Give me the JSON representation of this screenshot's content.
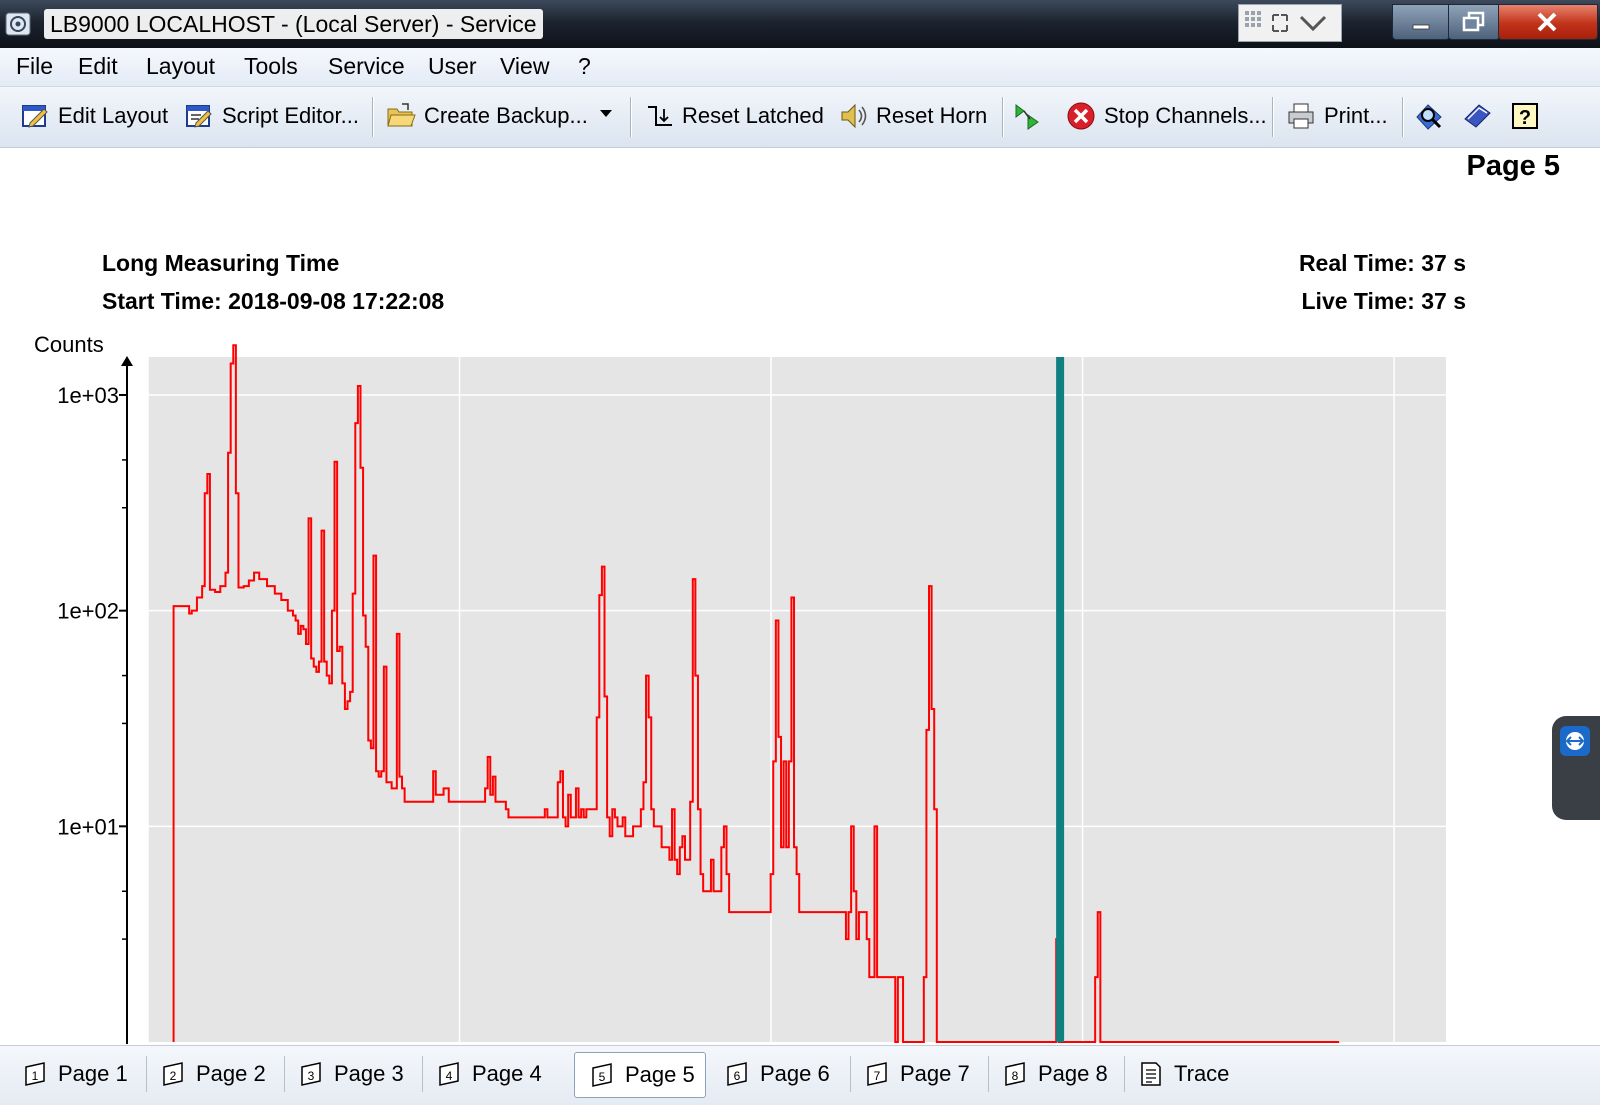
{
  "window": {
    "title": "LB9000 LOCALHOST - (Local Server) - Service"
  },
  "menu": [
    "File",
    "Edit",
    "Layout",
    "Tools",
    "Service",
    "User",
    "View",
    "?"
  ],
  "toolbar": {
    "edit_layout": "Edit Layout",
    "script_editor": "Script Editor...",
    "create_backup": "Create Backup...",
    "reset_latched": "Reset Latched",
    "reset_horn": "Reset Horn",
    "stop_channels": "Stop Channels...",
    "print": "Print..."
  },
  "page_label": "Page 5",
  "measurement": {
    "title": "Long Measuring Time",
    "start_time": "Start Time: 2018-09-08 17:22:08",
    "real_time": "Real Time: 37 s",
    "live_time": "Live Time: 37 s"
  },
  "chart_data": {
    "type": "line",
    "ylabel": "Counts",
    "y_scale": "log",
    "ylim": [
      1,
      1500
    ],
    "xlim": [
      0,
      1000
    ],
    "yticks": [
      "1e+01",
      "1e+02",
      "1e+03"
    ],
    "ytick_values": [
      10,
      100,
      1000
    ],
    "grid": true,
    "x_gridlines": [
      0,
      240,
      480,
      720,
      960
    ],
    "marker_x": 695,
    "series": [
      {
        "points": [
          [
            12,
            1
          ],
          [
            12,
            105
          ],
          [
            22,
            105
          ],
          [
            24,
            97
          ],
          [
            26,
            100
          ],
          [
            30,
            115
          ],
          [
            34,
            130
          ],
          [
            36,
            350
          ],
          [
            38,
            430
          ],
          [
            40,
            125
          ],
          [
            44,
            122
          ],
          [
            48,
            130
          ],
          [
            52,
            150
          ],
          [
            54,
            540
          ],
          [
            56,
            1400
          ],
          [
            58,
            1700
          ],
          [
            60,
            350
          ],
          [
            62,
            128
          ],
          [
            66,
            130
          ],
          [
            70,
            138
          ],
          [
            74,
            150
          ],
          [
            78,
            140
          ],
          [
            84,
            130
          ],
          [
            90,
            120
          ],
          [
            95,
            112
          ],
          [
            100,
            100
          ],
          [
            104,
            95
          ],
          [
            106,
            90
          ],
          [
            108,
            78
          ],
          [
            110,
            85
          ],
          [
            112,
            82
          ],
          [
            114,
            70
          ],
          [
            116,
            268
          ],
          [
            118,
            60
          ],
          [
            120,
            55
          ],
          [
            122,
            52
          ],
          [
            124,
            58
          ],
          [
            126,
            235
          ],
          [
            128,
            58
          ],
          [
            130,
            50
          ],
          [
            132,
            46
          ],
          [
            134,
            100
          ],
          [
            136,
            490
          ],
          [
            138,
            65
          ],
          [
            140,
            68
          ],
          [
            142,
            46
          ],
          [
            144,
            35
          ],
          [
            146,
            38
          ],
          [
            148,
            42
          ],
          [
            150,
            120
          ],
          [
            152,
            740
          ],
          [
            154,
            1100
          ],
          [
            156,
            460
          ],
          [
            158,
            95
          ],
          [
            160,
            68
          ],
          [
            162,
            25
          ],
          [
            164,
            23
          ],
          [
            166,
            180
          ],
          [
            168,
            18
          ],
          [
            170,
            17
          ],
          [
            172,
            18
          ],
          [
            174,
            55
          ],
          [
            176,
            16
          ],
          [
            178,
            16
          ],
          [
            180,
            15
          ],
          [
            182,
            15
          ],
          [
            184,
            78
          ],
          [
            186,
            17
          ],
          [
            188,
            15
          ],
          [
            190,
            13
          ],
          [
            210,
            13
          ],
          [
            212,
            18
          ],
          [
            214,
            14
          ],
          [
            218,
            14
          ],
          [
            220,
            15
          ],
          [
            224,
            13
          ],
          [
            250,
            13
          ],
          [
            252,
            15
          ],
          [
            254,
            21
          ],
          [
            256,
            14
          ],
          [
            258,
            17
          ],
          [
            260,
            13
          ],
          [
            266,
            13
          ],
          [
            268,
            12
          ],
          [
            270,
            11
          ],
          [
            296,
            11
          ],
          [
            298,
            12
          ],
          [
            300,
            11
          ],
          [
            306,
            11
          ],
          [
            308,
            16
          ],
          [
            310,
            18
          ],
          [
            312,
            11
          ],
          [
            314,
            10
          ],
          [
            316,
            14
          ],
          [
            318,
            11
          ],
          [
            320,
            11
          ],
          [
            322,
            15
          ],
          [
            324,
            11
          ],
          [
            326,
            12
          ],
          [
            328,
            11
          ],
          [
            330,
            12
          ],
          [
            336,
            12
          ],
          [
            338,
            32
          ],
          [
            340,
            118
          ],
          [
            342,
            160
          ],
          [
            344,
            40
          ],
          [
            346,
            11
          ],
          [
            348,
            9
          ],
          [
            350,
            12
          ],
          [
            352,
            11
          ],
          [
            354,
            10
          ],
          [
            358,
            11
          ],
          [
            360,
            9
          ],
          [
            364,
            9
          ],
          [
            366,
            10
          ],
          [
            370,
            10
          ],
          [
            372,
            12
          ],
          [
            374,
            16
          ],
          [
            376,
            50
          ],
          [
            378,
            32
          ],
          [
            380,
            12
          ],
          [
            382,
            10
          ],
          [
            386,
            10
          ],
          [
            388,
            8
          ],
          [
            392,
            8
          ],
          [
            394,
            7
          ],
          [
            396,
            12
          ],
          [
            398,
            7
          ],
          [
            400,
            6
          ],
          [
            402,
            8
          ],
          [
            404,
            9
          ],
          [
            406,
            7
          ],
          [
            408,
            7
          ],
          [
            410,
            13
          ],
          [
            412,
            140
          ],
          [
            414,
            50
          ],
          [
            416,
            12
          ],
          [
            418,
            6
          ],
          [
            420,
            5
          ],
          [
            424,
            5
          ],
          [
            426,
            7
          ],
          [
            428,
            5
          ],
          [
            432,
            5
          ],
          [
            434,
            8
          ],
          [
            436,
            10
          ],
          [
            438,
            6
          ],
          [
            440,
            4
          ],
          [
            470,
            4
          ],
          [
            472,
            6
          ],
          [
            474,
            20
          ],
          [
            476,
            90
          ],
          [
            478,
            26
          ],
          [
            480,
            8
          ],
          [
            482,
            20
          ],
          [
            484,
            8
          ],
          [
            486,
            20
          ],
          [
            488,
            115
          ],
          [
            490,
            8
          ],
          [
            492,
            6
          ],
          [
            494,
            4
          ],
          [
            528,
            4
          ],
          [
            530,
            3
          ],
          [
            532,
            4
          ],
          [
            534,
            10
          ],
          [
            536,
            5
          ],
          [
            538,
            3
          ],
          [
            540,
            4
          ],
          [
            544,
            4
          ],
          [
            546,
            3
          ],
          [
            548,
            2
          ],
          [
            550,
            2
          ],
          [
            552,
            10
          ],
          [
            554,
            2
          ],
          [
            560,
            2
          ],
          [
            566,
            2
          ],
          [
            568,
            1
          ],
          [
            570,
            2
          ],
          [
            572,
            2
          ],
          [
            574,
            1
          ],
          [
            588,
            1
          ],
          [
            590,
            2
          ],
          [
            592,
            28
          ],
          [
            594,
            130
          ],
          [
            596,
            35
          ],
          [
            598,
            12
          ],
          [
            600,
            1
          ],
          [
            618,
            1
          ],
          [
            620,
            1
          ],
          [
            626,
            1
          ],
          [
            640,
            1
          ],
          [
            690,
            1
          ],
          [
            692,
            3
          ],
          [
            694,
            1
          ],
          [
            696,
            1
          ],
          [
            698,
            1
          ],
          [
            720,
            1
          ],
          [
            722,
            2
          ],
          [
            724,
            4
          ],
          [
            726,
            1
          ],
          [
            728,
            1
          ],
          [
            760,
            1
          ],
          [
            840,
            1
          ],
          [
            910,
            1
          ]
        ]
      }
    ]
  },
  "tabs": [
    "Page 1",
    "Page 2",
    "Page 3",
    "Page 4",
    "Page 5",
    "Page 6",
    "Page 7",
    "Page 8",
    "Trace"
  ],
  "active_tab": "Page 5",
  "colors": {
    "trace": "#ff0000",
    "marker": "#118080",
    "plot_bg": "#e5e5e5",
    "grid": "#ffffff"
  }
}
